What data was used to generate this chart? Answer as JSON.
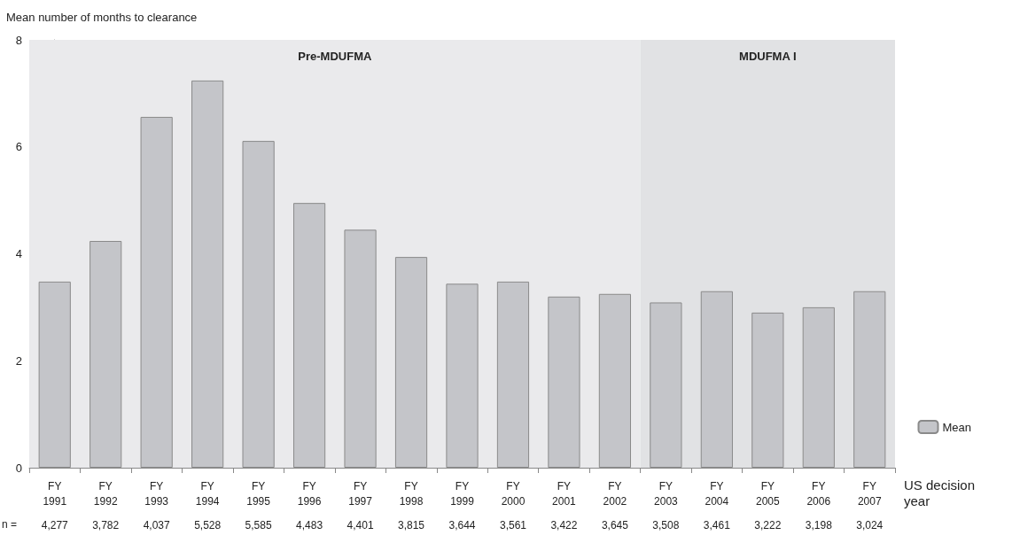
{
  "chart_data": {
    "type": "bar",
    "ylabel": "Mean number of months to clearance",
    "xlabel": "US decision\nyear",
    "categories": [
      "FY\n1991",
      "FY\n1992",
      "FY\n1993",
      "FY\n1994",
      "FY\n1995",
      "FY\n1996",
      "FY\n1997",
      "FY\n1998",
      "FY\n1999",
      "FY\n2000",
      "FY\n2001",
      "FY\n2002",
      "FY\n2003",
      "FY\n2004",
      "FY\n2005",
      "FY\n2006",
      "FY\n2007"
    ],
    "series": [
      {
        "name": "Mean",
        "color": "#c4c5c9",
        "values": [
          3.48,
          4.24,
          6.56,
          7.24,
          6.11,
          4.95,
          4.45,
          3.94,
          3.44,
          3.48,
          3.2,
          3.25,
          3.09,
          3.3,
          2.9,
          3.0,
          3.3
        ]
      }
    ],
    "ylim": [
      0,
      8
    ],
    "yticks": [
      0,
      2,
      4,
      6,
      8
    ],
    "legend": "bottom right",
    "bands": [
      {
        "axis": "x",
        "from": "FY\n1991",
        "to": "FY\n2002",
        "label": "Pre-MDUFMA",
        "color": "#eaeaec"
      },
      {
        "axis": "x",
        "from": "FY\n2003",
        "to": "FY\n2007",
        "label": "MDUFMA I",
        "color": "#e1e2e4"
      }
    ],
    "annotations": [
      "n =",
      "4,277",
      "3,782",
      "4,037",
      "5,528",
      "5,585",
      "4,483",
      "4,401",
      "3,815",
      "3,644",
      "3,561",
      "3,422",
      "3,645",
      "3,508",
      "3,461",
      "3,222",
      "3,198",
      "3,024"
    ]
  }
}
